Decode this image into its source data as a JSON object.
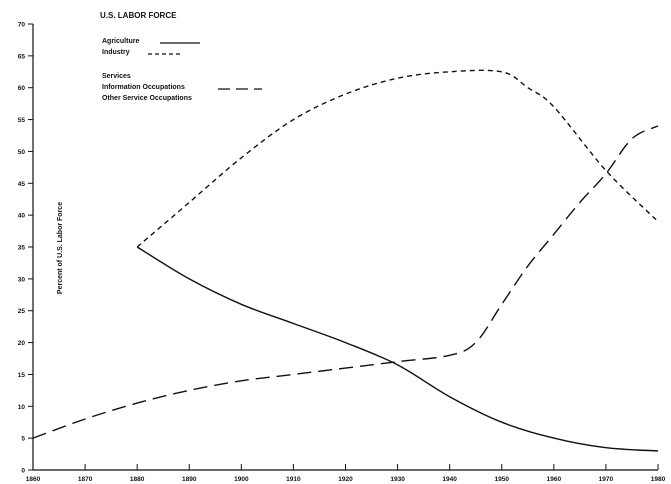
{
  "chart_data": {
    "type": "line",
    "title": "U.S. LABOR FORCE",
    "xlabel": "",
    "ylabel": "Percent of U.S. Labor Force",
    "xlim": [
      1860,
      1980
    ],
    "ylim": [
      0,
      70
    ],
    "x_ticks": [
      1860,
      1870,
      1880,
      1890,
      1900,
      1910,
      1920,
      1930,
      1940,
      1950,
      1960,
      1970,
      1980
    ],
    "x_tick_labels": [
      "1860",
      "1870",
      "1880",
      "1890",
      "1900",
      "1910",
      "1920",
      "1930",
      "1940",
      "1950",
      "1960",
      "1970",
      "1980"
    ],
    "y_ticks": [
      0,
      5,
      10,
      15,
      20,
      25,
      30,
      35,
      40,
      45,
      50,
      55,
      60,
      65,
      70
    ],
    "y_tick_labels": [
      "0",
      "5",
      "10",
      "15",
      "20",
      "25",
      "30",
      "35",
      "40",
      "45",
      "50",
      "55",
      "60",
      "65",
      "70"
    ],
    "grid": false,
    "legend_groups": [
      {
        "heading": "",
        "entries": [
          "Agriculture",
          "Industry"
        ]
      },
      {
        "heading": "Services",
        "entries": [
          "Information Occupations",
          "Other Service Occupations"
        ]
      }
    ],
    "series": [
      {
        "name": "Agriculture",
        "style": "solid",
        "x": [
          1880,
          1890,
          1900,
          1910,
          1920,
          1930,
          1940,
          1950,
          1960,
          1970,
          1980
        ],
        "y": [
          35,
          30,
          26,
          23,
          20,
          16.5,
          11.5,
          7.5,
          5,
          3.5,
          3
        ]
      },
      {
        "name": "Industry",
        "style": "short-dash",
        "x": [
          1880,
          1890,
          1900,
          1910,
          1920,
          1930,
          1940,
          1950,
          1955,
          1960,
          1970,
          1980
        ],
        "y": [
          35,
          42,
          49,
          55,
          59,
          61.5,
          62.5,
          62.5,
          60,
          57,
          47,
          39
        ]
      },
      {
        "name": "Information Occupations",
        "style": "long-dash",
        "x": [
          1860,
          1870,
          1880,
          1890,
          1900,
          1910,
          1920,
          1930,
          1940,
          1945,
          1950,
          1955,
          1960,
          1965,
          1970,
          1975,
          1980
        ],
        "y": [
          5,
          8,
          10.5,
          12.5,
          14,
          15,
          16,
          17,
          18,
          20,
          26,
          32,
          37,
          42,
          46.5,
          52,
          54
        ]
      }
    ]
  }
}
